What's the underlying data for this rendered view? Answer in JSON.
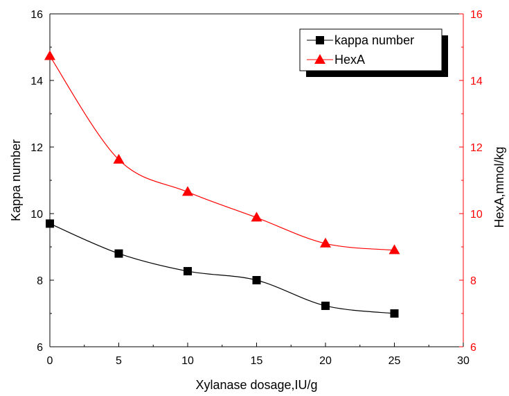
{
  "chart_data": {
    "type": "line",
    "title": "",
    "xlabel": "Xylanase dosage,IU/g",
    "ylabel": "Kappa number",
    "y2label": "HexA,mmol/kg",
    "xlim": [
      0,
      30
    ],
    "ylim": [
      6,
      16
    ],
    "y2lim": [
      6,
      16
    ],
    "x_ticks": [
      "0",
      "5",
      "10",
      "15",
      "20",
      "25",
      "30"
    ],
    "y_ticks": [
      "6",
      "8",
      "10",
      "12",
      "14",
      "16"
    ],
    "y2_ticks": [
      "6",
      "8",
      "10",
      "12",
      "14",
      "16"
    ],
    "x": [
      0,
      5,
      10,
      15,
      20,
      25
    ],
    "grid": false,
    "legend_position": "top-right",
    "series": [
      {
        "name": "kappa number",
        "axis": "left",
        "marker": "square",
        "color": "#000000",
        "values": [
          9.7,
          8.8,
          8.27,
          8.0,
          7.23,
          7.0
        ]
      },
      {
        "name": "HexA",
        "axis": "right",
        "marker": "triangle",
        "color": "#ff0000",
        "values": [
          14.73,
          11.62,
          10.65,
          9.88,
          9.1,
          8.9
        ]
      }
    ]
  }
}
